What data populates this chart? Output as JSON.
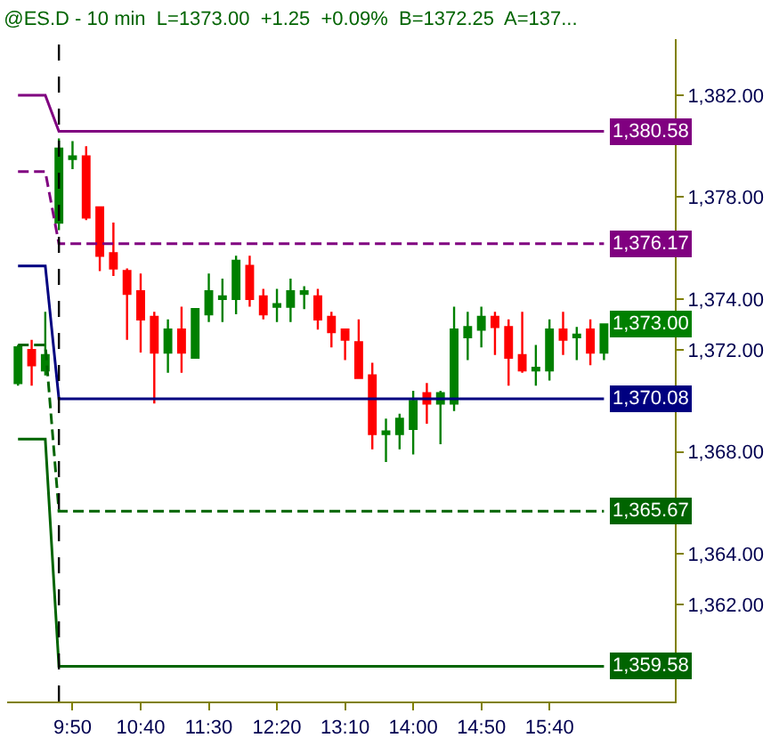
{
  "chart_data": {
    "type": "candlestick",
    "title": "@ES.D - 10 min  L=1373.00  +1.25  +0.09%  B=1372.25  A=137...",
    "categories": [
      null,
      null,
      null,
      null,
      "9:50",
      null,
      null,
      null,
      null,
      "10:40",
      null,
      null,
      null,
      null,
      "11:30",
      null,
      null,
      null,
      null,
      "12:20",
      null,
      null,
      null,
      null,
      "13:10",
      null,
      null,
      null,
      null,
      "14:00",
      null,
      null,
      null,
      null,
      "14:50",
      null,
      null,
      null,
      null,
      "15:40",
      null,
      null,
      null,
      null
    ],
    "ohlc": [
      [
        1370.7,
        1372.2,
        1370.6,
        1372.1
      ],
      [
        1372.0,
        1372.4,
        1370.6,
        1371.4
      ],
      [
        1371.2,
        1373.5,
        1371.0,
        1371.8
      ],
      [
        1377.0,
        1380.3,
        1376.7,
        1379.9
      ],
      [
        1379.5,
        1380.2,
        1379.1,
        1379.6
      ],
      [
        1379.6,
        1380.0,
        1377.1,
        1377.2
      ],
      [
        1377.6,
        1377.6,
        1375.1,
        1375.7
      ],
      [
        1375.8,
        1377.0,
        1374.9,
        1375.2
      ],
      [
        1375.1,
        1375.2,
        1372.4,
        1374.2
      ],
      [
        1374.3,
        1375.0,
        1371.9,
        1373.2
      ],
      [
        1373.3,
        1373.5,
        1369.9,
        1371.9
      ],
      [
        1371.9,
        1373.2,
        1371.1,
        1372.8
      ],
      [
        1372.8,
        1373.7,
        1371.1,
        1371.9
      ],
      [
        1371.7,
        1373.6,
        1371.7,
        1373.6
      ],
      [
        1373.4,
        1375.0,
        1373.1,
        1374.3
      ],
      [
        1374.0,
        1374.8,
        1373.1,
        1374.1
      ],
      [
        1374.0,
        1375.7,
        1373.4,
        1375.5
      ],
      [
        1375.3,
        1375.7,
        1373.7,
        1374.0
      ],
      [
        1374.1,
        1374.4,
        1373.2,
        1373.4
      ],
      [
        1373.7,
        1374.4,
        1373.1,
        1373.8
      ],
      [
        1373.7,
        1374.8,
        1373.1,
        1374.3
      ],
      [
        1374.2,
        1374.5,
        1373.6,
        1374.3
      ],
      [
        1374.1,
        1374.4,
        1372.8,
        1373.2
      ],
      [
        1373.3,
        1373.5,
        1372.1,
        1372.7
      ],
      [
        1372.8,
        1372.8,
        1371.6,
        1372.4
      ],
      [
        1372.3,
        1373.2,
        1370.9,
        1370.9
      ],
      [
        1371.0,
        1371.5,
        1368.1,
        1368.7
      ],
      [
        1368.7,
        1369.3,
        1367.6,
        1368.8
      ],
      [
        1368.7,
        1369.5,
        1368.1,
        1369.3
      ],
      [
        1368.9,
        1370.4,
        1367.9,
        1370.0
      ],
      [
        1370.3,
        1370.7,
        1369.1,
        1369.9
      ],
      [
        1369.9,
        1370.4,
        1368.3,
        1370.3
      ],
      [
        1369.9,
        1373.7,
        1369.6,
        1372.8
      ],
      [
        1372.5,
        1373.5,
        1371.6,
        1372.9
      ],
      [
        1372.8,
        1373.7,
        1372.1,
        1373.3
      ],
      [
        1373.3,
        1373.5,
        1371.8,
        1372.9
      ],
      [
        1372.9,
        1373.2,
        1370.6,
        1371.7
      ],
      [
        1371.8,
        1373.5,
        1371.1,
        1371.2
      ],
      [
        1371.2,
        1372.2,
        1370.6,
        1371.3
      ],
      [
        1371.2,
        1373.2,
        1370.8,
        1372.8
      ],
      [
        1372.8,
        1373.5,
        1371.8,
        1372.4
      ],
      [
        1372.5,
        1372.9,
        1371.6,
        1372.6
      ],
      [
        1372.8,
        1373.2,
        1371.4,
        1371.9
      ],
      [
        1371.9,
        1373.0,
        1371.6,
        1373.0
      ]
    ],
    "colors": [
      "#008000",
      "#ff0000",
      "#008000",
      "#008000",
      "#008000",
      "#ff0000",
      "#ff0000",
      "#ff0000",
      "#ff0000",
      "#ff0000",
      "#ff0000",
      "#008000",
      "#ff0000",
      "#008000",
      "#008000",
      "#008000",
      "#008000",
      "#ff0000",
      "#ff0000",
      "#008000",
      "#008000",
      "#008000",
      "#ff0000",
      "#ff0000",
      "#ff0000",
      "#ff0000",
      "#ff0000",
      "#008000",
      "#008000",
      "#008000",
      "#ff0000",
      "#008000",
      "#008000",
      "#008000",
      "#008000",
      "#ff0000",
      "#ff0000",
      "#ff0000",
      "#008000",
      "#008000",
      "#ff0000",
      "#008000",
      "#ff0000",
      "#008000"
    ],
    "series": [
      {
        "type": "line",
        "color": "#800080",
        "line_style": "solid",
        "values": [
          1382.0,
          1382.0,
          1382.0,
          1380.58,
          1380.58,
          1380.58,
          1380.58,
          1380.58,
          1380.58,
          1380.58,
          1380.58,
          1380.58,
          1380.58,
          1380.58,
          1380.58,
          1380.58,
          1380.58,
          1380.58,
          1380.58,
          1380.58,
          1380.58,
          1380.58,
          1380.58,
          1380.58,
          1380.58,
          1380.58,
          1380.58,
          1380.58,
          1380.58,
          1380.58,
          1380.58,
          1380.58,
          1380.58,
          1380.58,
          1380.58,
          1380.58,
          1380.58,
          1380.58,
          1380.58,
          1380.58,
          1380.58,
          1380.58,
          1380.58,
          1380.58
        ],
        "value_labels": [
          null,
          null,
          null,
          null,
          null,
          null,
          null,
          null,
          null,
          null,
          null,
          null,
          null,
          null,
          null,
          null,
          null,
          null,
          null,
          null,
          null,
          null,
          null,
          null,
          null,
          null,
          null,
          null,
          null,
          null,
          null,
          null,
          null,
          null,
          null,
          null,
          null,
          null,
          null,
          null,
          null,
          null,
          null,
          "1,380.58"
        ]
      },
      {
        "type": "line",
        "color": "#800080",
        "line_style": "dashed",
        "values": [
          1379.0,
          1379.0,
          1379.0,
          1376.17,
          1376.17,
          1376.17,
          1376.17,
          1376.17,
          1376.17,
          1376.17,
          1376.17,
          1376.17,
          1376.17,
          1376.17,
          1376.17,
          1376.17,
          1376.17,
          1376.17,
          1376.17,
          1376.17,
          1376.17,
          1376.17,
          1376.17,
          1376.17,
          1376.17,
          1376.17,
          1376.17,
          1376.17,
          1376.17,
          1376.17,
          1376.17,
          1376.17,
          1376.17,
          1376.17,
          1376.17,
          1376.17,
          1376.17,
          1376.17,
          1376.17,
          1376.17,
          1376.17,
          1376.17,
          1376.17,
          1376.17
        ],
        "value_labels": [
          null,
          null,
          null,
          null,
          null,
          null,
          null,
          null,
          null,
          null,
          null,
          null,
          null,
          null,
          null,
          null,
          null,
          null,
          null,
          null,
          null,
          null,
          null,
          null,
          null,
          null,
          null,
          null,
          null,
          null,
          null,
          null,
          null,
          null,
          null,
          null,
          null,
          null,
          null,
          null,
          null,
          null,
          null,
          "1,376.17"
        ]
      },
      {
        "type": "line",
        "color": "#000080",
        "line_style": "solid",
        "values": [
          1375.3,
          1375.3,
          1375.3,
          1370.08,
          1370.08,
          1370.08,
          1370.08,
          1370.08,
          1370.08,
          1370.08,
          1370.08,
          1370.08,
          1370.08,
          1370.08,
          1370.08,
          1370.08,
          1370.08,
          1370.08,
          1370.08,
          1370.08,
          1370.08,
          1370.08,
          1370.08,
          1370.08,
          1370.08,
          1370.08,
          1370.08,
          1370.08,
          1370.08,
          1370.08,
          1370.08,
          1370.08,
          1370.08,
          1370.08,
          1370.08,
          1370.08,
          1370.08,
          1370.08,
          1370.08,
          1370.08,
          1370.08,
          1370.08,
          1370.08,
          1370.08
        ],
        "value_labels": [
          null,
          null,
          null,
          null,
          null,
          null,
          null,
          null,
          null,
          null,
          null,
          null,
          null,
          null,
          null,
          null,
          null,
          null,
          null,
          null,
          null,
          null,
          null,
          null,
          null,
          null,
          null,
          null,
          null,
          null,
          null,
          null,
          null,
          null,
          null,
          null,
          null,
          null,
          null,
          null,
          null,
          null,
          null,
          "1,370.08"
        ]
      },
      {
        "type": "line",
        "color": "#006400",
        "line_style": "dashed",
        "values": [
          1372.2,
          1372.2,
          1372.2,
          1365.67,
          1365.67,
          1365.67,
          1365.67,
          1365.67,
          1365.67,
          1365.67,
          1365.67,
          1365.67,
          1365.67,
          1365.67,
          1365.67,
          1365.67,
          1365.67,
          1365.67,
          1365.67,
          1365.67,
          1365.67,
          1365.67,
          1365.67,
          1365.67,
          1365.67,
          1365.67,
          1365.67,
          1365.67,
          1365.67,
          1365.67,
          1365.67,
          1365.67,
          1365.67,
          1365.67,
          1365.67,
          1365.67,
          1365.67,
          1365.67,
          1365.67,
          1365.67,
          1365.67,
          1365.67,
          1365.67,
          1365.67
        ],
        "value_labels": [
          null,
          null,
          null,
          null,
          null,
          null,
          null,
          null,
          null,
          null,
          null,
          null,
          null,
          null,
          null,
          null,
          null,
          null,
          null,
          null,
          null,
          null,
          null,
          null,
          null,
          null,
          null,
          null,
          null,
          null,
          null,
          null,
          null,
          null,
          null,
          null,
          null,
          null,
          null,
          null,
          null,
          null,
          null,
          "1,365.67"
        ]
      },
      {
        "type": "line",
        "color": "#006400",
        "line_style": "solid",
        "values": [
          1368.5,
          1368.5,
          1368.5,
          1359.58,
          1359.58,
          1359.58,
          1359.58,
          1359.58,
          1359.58,
          1359.58,
          1359.58,
          1359.58,
          1359.58,
          1359.58,
          1359.58,
          1359.58,
          1359.58,
          1359.58,
          1359.58,
          1359.58,
          1359.58,
          1359.58,
          1359.58,
          1359.58,
          1359.58,
          1359.58,
          1359.58,
          1359.58,
          1359.58,
          1359.58,
          1359.58,
          1359.58,
          1359.58,
          1359.58,
          1359.58,
          1359.58,
          1359.58,
          1359.58,
          1359.58,
          1359.58,
          1359.58,
          1359.58,
          1359.58,
          1359.58
        ],
        "value_labels": [
          null,
          null,
          null,
          null,
          null,
          null,
          null,
          null,
          null,
          null,
          null,
          null,
          null,
          null,
          null,
          null,
          null,
          null,
          null,
          null,
          null,
          null,
          null,
          null,
          null,
          null,
          null,
          null,
          null,
          null,
          null,
          null,
          null,
          null,
          null,
          null,
          null,
          null,
          null,
          null,
          null,
          null,
          null,
          "1,359.58"
        ]
      }
    ],
    "annotations": [
      "1,373.00"
    ],
    "ylim": [
      1358.2,
      1384.2
    ],
    "yticks": [
      {
        "value": 1362,
        "label": "1,362.00"
      },
      {
        "value": 1364,
        "label": "1,364.00"
      },
      {
        "value": 1368,
        "label": "1,368.00"
      },
      {
        "value": 1372,
        "label": "1,372.00"
      },
      {
        "value": 1374,
        "label": "1,374.00"
      },
      {
        "value": 1378,
        "label": "1,378.00"
      },
      {
        "value": 1382,
        "label": "1,382.00"
      }
    ]
  }
}
